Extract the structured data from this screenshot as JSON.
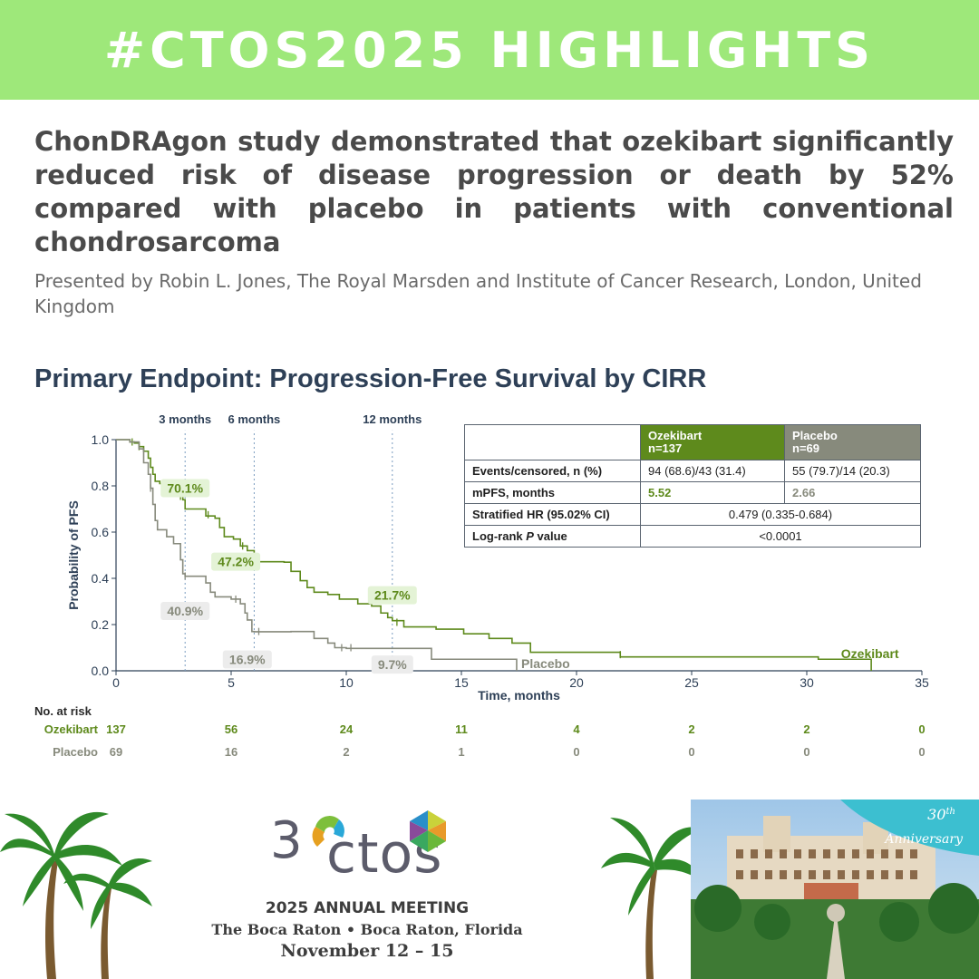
{
  "banner": {
    "text": "#CTOS2025 HIGHLIGHTS"
  },
  "headline": "ChonDRAgon study demonstrated that ozekibart significantly reduced risk of disease progression or death by 52% compared with placebo in patients with conventional chondrosarcoma",
  "presenter": "Presented by Robin L. Jones, The Royal Marsden and Institute of Cancer Research, London, United Kingdom",
  "chart_title": "Primary Endpoint: Progression-Free Survival by CIRR",
  "colors": {
    "banner": "#9ee87a",
    "ozekibart": "#5e8a1c",
    "placebo": "#878a7c",
    "title": "#2e4057"
  },
  "chart_data": {
    "type": "line",
    "subtype": "kaplan-meier",
    "title": "Primary Endpoint: Progression-Free Survival by CIRR",
    "xlabel": "Time, months",
    "ylabel": "Probability of PFS",
    "xlim": [
      0,
      35
    ],
    "ylim": [
      0,
      1.0
    ],
    "xticks": [
      0,
      5,
      10,
      15,
      20,
      25,
      30,
      35
    ],
    "yticks": [
      0.0,
      0.2,
      0.4,
      0.6,
      0.8,
      1.0
    ],
    "vlines": [
      {
        "x": 3,
        "label": "3 months"
      },
      {
        "x": 6,
        "label": "6 months"
      },
      {
        "x": 12,
        "label": "12 months"
      }
    ],
    "series": [
      {
        "name": "Ozekibart",
        "points": [
          [
            0,
            1.0
          ],
          [
            0.5,
            1.0
          ],
          [
            0.6,
            0.99
          ],
          [
            0.8,
            0.985
          ],
          [
            1.0,
            0.97
          ],
          [
            1.2,
            0.95
          ],
          [
            1.4,
            0.92
          ],
          [
            1.5,
            0.88
          ],
          [
            1.6,
            0.85
          ],
          [
            1.7,
            0.82
          ],
          [
            1.9,
            0.81
          ],
          [
            2.2,
            0.8
          ],
          [
            2.5,
            0.78
          ],
          [
            2.9,
            0.74
          ],
          [
            3.0,
            0.7
          ],
          [
            3.8,
            0.7
          ],
          [
            3.9,
            0.67
          ],
          [
            4.3,
            0.66
          ],
          [
            4.5,
            0.62
          ],
          [
            4.7,
            0.58
          ],
          [
            5.1,
            0.57
          ],
          [
            5.4,
            0.54
          ],
          [
            5.7,
            0.52
          ],
          [
            6.0,
            0.472
          ],
          [
            7.3,
            0.47
          ],
          [
            7.6,
            0.43
          ],
          [
            8.0,
            0.39
          ],
          [
            8.3,
            0.36
          ],
          [
            8.6,
            0.34
          ],
          [
            9.2,
            0.33
          ],
          [
            9.7,
            0.31
          ],
          [
            10.5,
            0.29
          ],
          [
            11.1,
            0.28
          ],
          [
            11.5,
            0.25
          ],
          [
            11.8,
            0.23
          ],
          [
            12.0,
            0.217
          ],
          [
            12.5,
            0.19
          ],
          [
            13.9,
            0.18
          ],
          [
            15.1,
            0.16
          ],
          [
            16.2,
            0.14
          ],
          [
            17.2,
            0.12
          ],
          [
            18.0,
            0.08
          ],
          [
            21.9,
            0.06
          ],
          [
            30.5,
            0.05
          ],
          [
            32.8,
            0.0
          ]
        ],
        "censors": [
          [
            0.7,
            0.99
          ],
          [
            1.0,
            0.97
          ],
          [
            2.4,
            0.79
          ],
          [
            2.6,
            0.77
          ],
          [
            2.8,
            0.755
          ],
          [
            4.0,
            0.675
          ],
          [
            5.5,
            0.54
          ],
          [
            12.2,
            0.21
          ],
          [
            21.9,
            0.07
          ]
        ]
      },
      {
        "name": "Placebo",
        "points": [
          [
            0,
            1.0
          ],
          [
            0.6,
            0.99
          ],
          [
            1.0,
            0.96
          ],
          [
            1.2,
            0.9
          ],
          [
            1.4,
            0.85
          ],
          [
            1.5,
            0.79
          ],
          [
            1.6,
            0.72
          ],
          [
            1.7,
            0.65
          ],
          [
            1.8,
            0.61
          ],
          [
            2.2,
            0.58
          ],
          [
            2.5,
            0.55
          ],
          [
            2.8,
            0.48
          ],
          [
            2.9,
            0.42
          ],
          [
            3.0,
            0.409
          ],
          [
            3.9,
            0.38
          ],
          [
            4.1,
            0.34
          ],
          [
            4.3,
            0.32
          ],
          [
            5.0,
            0.31
          ],
          [
            5.4,
            0.29
          ],
          [
            5.6,
            0.25
          ],
          [
            5.7,
            0.22
          ],
          [
            5.9,
            0.17
          ],
          [
            6.0,
            0.169
          ],
          [
            7.6,
            0.17
          ],
          [
            8.6,
            0.14
          ],
          [
            9.2,
            0.12
          ],
          [
            9.5,
            0.1
          ],
          [
            10.0,
            0.097
          ],
          [
            12.0,
            0.097
          ],
          [
            13.7,
            0.05
          ],
          [
            17.4,
            0.0
          ]
        ],
        "censors": [
          [
            1.5,
            0.79
          ],
          [
            3.0,
            0.41
          ],
          [
            5.2,
            0.31
          ],
          [
            6.2,
            0.17
          ],
          [
            9.8,
            0.1
          ],
          [
            10.2,
            0.1
          ]
        ]
      }
    ],
    "annotations": [
      {
        "text": "70.1%",
        "series": "Ozekibart",
        "x": 3
      },
      {
        "text": "47.2%",
        "series": "Ozekibart",
        "x": 6
      },
      {
        "text": "21.7%",
        "series": "Ozekibart",
        "x": 12
      },
      {
        "text": "40.9%",
        "series": "Placebo",
        "x": 3
      },
      {
        "text": "16.9%",
        "series": "Placebo",
        "x": 6
      },
      {
        "text": "9.7%",
        "series": "Placebo",
        "x": 12
      }
    ],
    "series_labels": [
      "Ozekibart",
      "Placebo"
    ],
    "table": {
      "header": [
        "",
        "Ozekibart\nn=137",
        "Placebo\nn=69"
      ],
      "rows": [
        {
          "label": "Events/censored, n (%)",
          "oz": "94 (68.6)/43 (31.4)",
          "pl": "55 (79.7)/14 (20.3)"
        },
        {
          "label": "mPFS, months",
          "oz": "5.52",
          "pl": "2.66"
        },
        {
          "label": "Stratified HR (95.02% CI)",
          "both": "0.479 (0.335-0.684)"
        },
        {
          "label_pre": "Log-rank ",
          "label_em": "P",
          "label_post": " value",
          "both": "<0.0001"
        }
      ]
    },
    "at_risk": {
      "title": "No. at risk",
      "times": [
        0,
        5,
        10,
        15,
        20,
        25,
        30,
        35
      ],
      "rows": [
        {
          "name": "Ozekibart",
          "values": [
            "137",
            "56",
            "24",
            "11",
            "4",
            "2",
            "2",
            "0"
          ]
        },
        {
          "name": "Placebo",
          "values": [
            "69",
            "16",
            "2",
            "1",
            "0",
            "0",
            "0",
            "0"
          ]
        }
      ]
    }
  },
  "footer": {
    "logo_digit": "3",
    "logo_text": "ctos",
    "line1": "2025 ANNUAL MEETING",
    "line2": "The Boca Raton   •   Boca Raton, Florida",
    "line3": "November 12 – 15",
    "anniversary_top": "30",
    "anniversary_sup": "th",
    "anniversary_word": "Anniversary"
  }
}
